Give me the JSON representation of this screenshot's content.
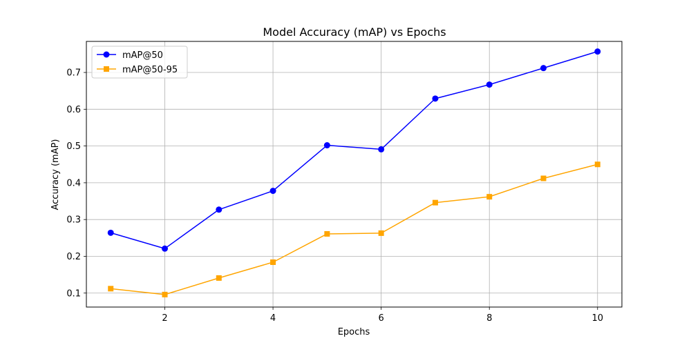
{
  "chart_data": {
    "type": "line",
    "title": "Model Accuracy (mAP) vs Epochs",
    "xlabel": "Epochs",
    "ylabel": "Accuracy (mAP)",
    "x": [
      1,
      2,
      3,
      4,
      5,
      6,
      7,
      8,
      9,
      10
    ],
    "xlim": [
      0.55,
      10.45
    ],
    "ylim": [
      0.062,
      0.7845
    ],
    "xticks": [
      2,
      4,
      6,
      8,
      10
    ],
    "yticks": [
      0.1,
      0.2,
      0.3,
      0.4,
      0.5,
      0.6,
      0.7
    ],
    "grid": true,
    "legend_position": "upper-left",
    "series": [
      {
        "name": "mAP@50",
        "color": "#0000ff",
        "marker": "circle",
        "values": [
          0.264,
          0.221,
          0.327,
          0.378,
          0.502,
          0.491,
          0.629,
          0.667,
          0.712,
          0.757
        ]
      },
      {
        "name": "mAP@50-95",
        "color": "#ffa500",
        "marker": "square",
        "values": [
          0.112,
          0.096,
          0.141,
          0.184,
          0.261,
          0.263,
          0.346,
          0.362,
          0.412,
          0.45
        ]
      }
    ]
  }
}
